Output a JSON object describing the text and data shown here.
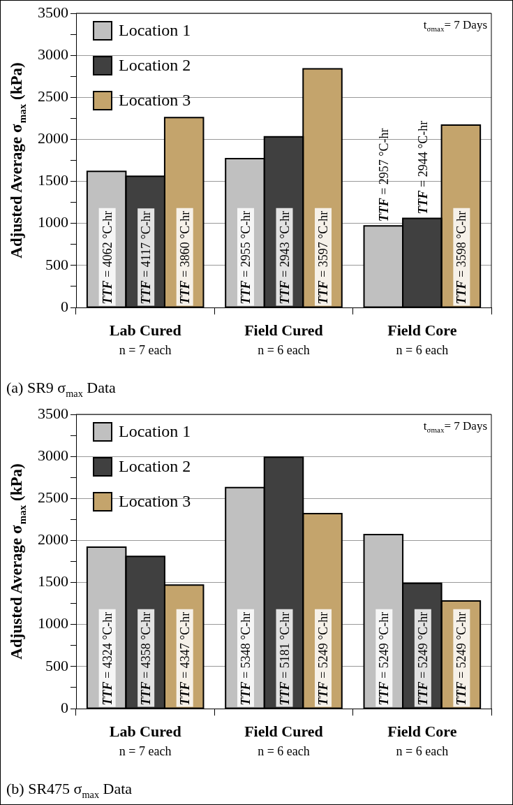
{
  "chart_data": [
    {
      "type": "bar",
      "title": "(a) SR9 σ$_{max}$ Data",
      "ylabel": "Adjusted Average σ$_{max}$ (kPa)",
      "categories": [
        "Lab Cured\nn = 7 each",
        "Field Cured\nn = 6 each",
        "Field Core\nn = 6 each"
      ],
      "series": [
        {
          "name": "Location 1",
          "color": "#c0c0c0",
          "values": [
            1620,
            1770,
            970
          ]
        },
        {
          "name": "Location 2",
          "color": "#404040",
          "values": [
            1560,
            2030,
            1060
          ]
        },
        {
          "name": "Location 3",
          "color": "#c4a46c",
          "values": [
            2260,
            2840,
            2170
          ]
        }
      ],
      "ylim": [
        0,
        3500
      ],
      "yticks": [
        0,
        {
          "value": 250,
          "label": null
        },
        500,
        {
          "value": 750,
          "label": null
        },
        1000,
        {
          "value": 1250,
          "label": null
        },
        1500,
        {
          "value": 1750,
          "label": null
        },
        2000,
        {
          "value": 2250,
          "label": null
        },
        2500,
        {
          "value": 2750,
          "label": null
        },
        3000,
        {
          "value": 3250,
          "label": null
        },
        3500
      ],
      "grid": "y",
      "legend": "top left",
      "annotations": [
        "t$_{σmax}$= 7 Days",
        "TTF = 4062 °C-hr",
        "TTF = 4117 °C-hr",
        "TTF = 3860 °C-hr",
        "TTF = 2955 °C-hr",
        "TTF = 2943 °C-hr",
        "TTF = 3597 °C-hr",
        "TTF = 2957 °C-hr",
        "TTF = 2944 °C-hr",
        "TTF = 3598 °C-hr"
      ]
    },
    {
      "type": "bar",
      "title": "(b) SR475 σ$_{max}$ Data",
      "ylabel": "Adjusted Average σ$_{max}$ (kPa)",
      "categories": [
        "Lab Cured\nn = 7 each",
        "Field Cured\nn = 6 each",
        "Field Core\nn = 6 each"
      ],
      "series": [
        {
          "name": "Location 1",
          "color": "#c0c0c0",
          "values": [
            1920,
            2630,
            2070
          ]
        },
        {
          "name": "Location 2",
          "color": "#404040",
          "values": [
            1810,
            2990,
            1490
          ]
        },
        {
          "name": "Location 3",
          "color": "#c4a46c",
          "values": [
            1470,
            2320,
            1280
          ]
        }
      ],
      "ylim": [
        0,
        3500
      ],
      "yticks": [
        0,
        {
          "value": 250,
          "label": null
        },
        500,
        {
          "value": 750,
          "label": null
        },
        1000,
        {
          "value": 1250,
          "label": null
        },
        1500,
        {
          "value": 1750,
          "label": null
        },
        2000,
        {
          "value": 2250,
          "label": null
        },
        2500,
        {
          "value": 2750,
          "label": null
        },
        3000,
        {
          "value": 3250,
          "label": null
        },
        3500
      ],
      "grid": "y",
      "legend": "top left",
      "annotations": [
        "t$_{σmax}$= 7 Days",
        "TTF = 4324 °C-hr",
        "TTF = 4358 °C-hr",
        "TTF = 4347 °C-hr",
        "TTF = 5348 °C-hr",
        "TTF = 5181 °C-hr",
        "TTF = 5249 °C-hr",
        "TTF = 5249 °C-hr",
        "TTF = 5249 °C-hr",
        "TTF = 5249 °C-hr"
      ]
    }
  ]
}
